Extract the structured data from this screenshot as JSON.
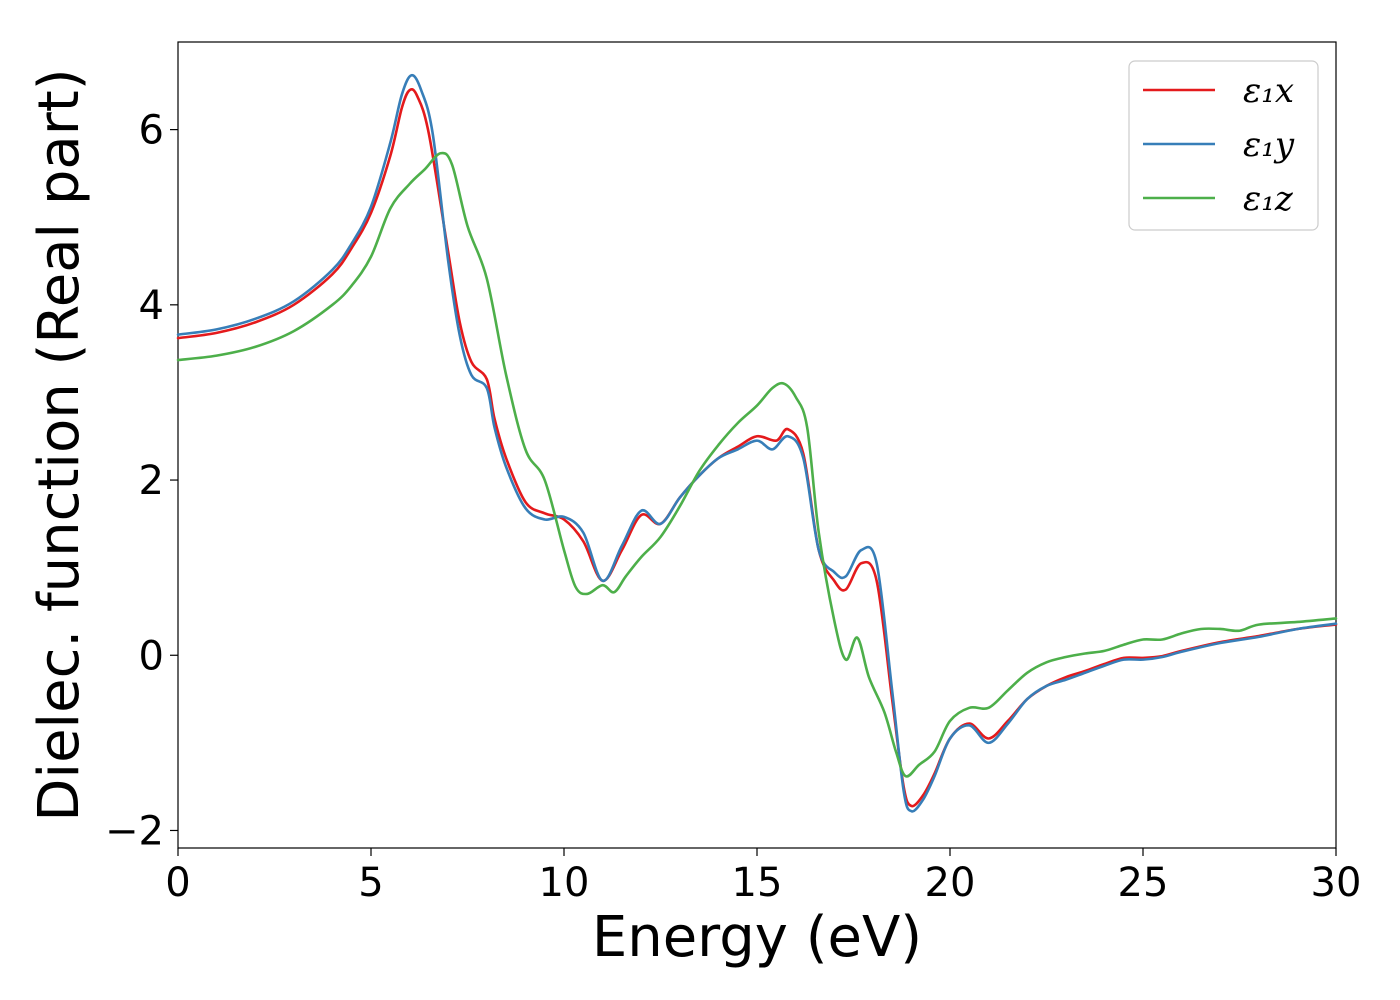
{
  "chart_data": {
    "type": "line",
    "title": "",
    "xlabel": "Energy (eV)",
    "ylabel": "Dielec. function (Real part)",
    "xlim": [
      0,
      30
    ],
    "ylim": [
      -2.2,
      7.0
    ],
    "xticks": [
      0,
      5,
      10,
      15,
      20,
      25,
      30
    ],
    "yticks": [
      -2,
      0,
      2,
      4,
      6
    ],
    "xtick_labels": [
      "0",
      "5",
      "10",
      "15",
      "20",
      "25",
      "30"
    ],
    "ytick_labels": [
      "−2",
      "0",
      "2",
      "4",
      "6"
    ],
    "grid": false,
    "legend_position": "top-right",
    "series": [
      {
        "name": "ε₁x",
        "color": "#e41a1c",
        "points": [
          [
            0,
            3.62
          ],
          [
            1,
            3.68
          ],
          [
            2,
            3.8
          ],
          [
            3,
            4.0
          ],
          [
            4,
            4.35
          ],
          [
            4.5,
            4.65
          ],
          [
            5,
            5.05
          ],
          [
            5.5,
            5.7
          ],
          [
            5.8,
            6.25
          ],
          [
            6.0,
            6.45
          ],
          [
            6.2,
            6.38
          ],
          [
            6.5,
            5.95
          ],
          [
            7.0,
            4.6
          ],
          [
            7.3,
            3.8
          ],
          [
            7.6,
            3.35
          ],
          [
            8.0,
            3.15
          ],
          [
            8.2,
            2.7
          ],
          [
            8.5,
            2.25
          ],
          [
            9.0,
            1.75
          ],
          [
            9.5,
            1.62
          ],
          [
            10.0,
            1.55
          ],
          [
            10.5,
            1.3
          ],
          [
            11.0,
            0.85
          ],
          [
            11.5,
            1.2
          ],
          [
            12.0,
            1.6
          ],
          [
            12.5,
            1.5
          ],
          [
            13.0,
            1.8
          ],
          [
            13.5,
            2.05
          ],
          [
            14.0,
            2.25
          ],
          [
            14.5,
            2.38
          ],
          [
            15.0,
            2.5
          ],
          [
            15.5,
            2.45
          ],
          [
            15.8,
            2.58
          ],
          [
            16.2,
            2.3
          ],
          [
            16.6,
            1.2
          ],
          [
            17.0,
            0.85
          ],
          [
            17.3,
            0.75
          ],
          [
            17.7,
            1.05
          ],
          [
            18.1,
            0.85
          ],
          [
            18.5,
            -0.5
          ],
          [
            18.8,
            -1.5
          ],
          [
            19.0,
            -1.72
          ],
          [
            19.3,
            -1.6
          ],
          [
            19.6,
            -1.35
          ],
          [
            20.0,
            -0.95
          ],
          [
            20.5,
            -0.78
          ],
          [
            21.0,
            -0.95
          ],
          [
            21.5,
            -0.75
          ],
          [
            22.0,
            -0.5
          ],
          [
            22.5,
            -0.35
          ],
          [
            23.0,
            -0.25
          ],
          [
            23.5,
            -0.18
          ],
          [
            24.0,
            -0.1
          ],
          [
            24.5,
            -0.03
          ],
          [
            25.0,
            -0.03
          ],
          [
            25.5,
            -0.01
          ],
          [
            26.0,
            0.05
          ],
          [
            27.0,
            0.15
          ],
          [
            28.0,
            0.22
          ],
          [
            29.0,
            0.3
          ],
          [
            30.0,
            0.35
          ]
        ]
      },
      {
        "name": "ε₁y",
        "color": "#377eb8",
        "points": [
          [
            0,
            3.66
          ],
          [
            1,
            3.72
          ],
          [
            2,
            3.84
          ],
          [
            3,
            4.04
          ],
          [
            4,
            4.4
          ],
          [
            4.5,
            4.7
          ],
          [
            5,
            5.12
          ],
          [
            5.5,
            5.85
          ],
          [
            5.8,
            6.4
          ],
          [
            6.05,
            6.62
          ],
          [
            6.3,
            6.45
          ],
          [
            6.6,
            5.95
          ],
          [
            7.0,
            4.5
          ],
          [
            7.3,
            3.65
          ],
          [
            7.6,
            3.2
          ],
          [
            8.0,
            3.05
          ],
          [
            8.2,
            2.6
          ],
          [
            8.5,
            2.15
          ],
          [
            9.0,
            1.68
          ],
          [
            9.5,
            1.55
          ],
          [
            10.0,
            1.58
          ],
          [
            10.5,
            1.4
          ],
          [
            11.0,
            0.85
          ],
          [
            11.5,
            1.25
          ],
          [
            12.0,
            1.65
          ],
          [
            12.5,
            1.5
          ],
          [
            13.0,
            1.8
          ],
          [
            13.5,
            2.05
          ],
          [
            14.0,
            2.25
          ],
          [
            14.5,
            2.35
          ],
          [
            15.0,
            2.45
          ],
          [
            15.4,
            2.35
          ],
          [
            15.8,
            2.5
          ],
          [
            16.2,
            2.25
          ],
          [
            16.6,
            1.2
          ],
          [
            17.0,
            0.95
          ],
          [
            17.3,
            0.9
          ],
          [
            17.7,
            1.2
          ],
          [
            18.1,
            1.05
          ],
          [
            18.5,
            -0.4
          ],
          [
            18.8,
            -1.55
          ],
          [
            19.0,
            -1.78
          ],
          [
            19.3,
            -1.65
          ],
          [
            19.6,
            -1.38
          ],
          [
            20.0,
            -0.95
          ],
          [
            20.5,
            -0.8
          ],
          [
            21.0,
            -1.0
          ],
          [
            21.5,
            -0.78
          ],
          [
            22.0,
            -0.5
          ],
          [
            22.5,
            -0.35
          ],
          [
            23.0,
            -0.28
          ],
          [
            23.5,
            -0.2
          ],
          [
            24.0,
            -0.12
          ],
          [
            24.5,
            -0.05
          ],
          [
            25.0,
            -0.05
          ],
          [
            25.5,
            -0.02
          ],
          [
            26.0,
            0.04
          ],
          [
            27.0,
            0.14
          ],
          [
            28.0,
            0.21
          ],
          [
            29.0,
            0.3
          ],
          [
            30.0,
            0.36
          ]
        ]
      },
      {
        "name": "ε₁z",
        "color": "#4daf4a",
        "points": [
          [
            0,
            3.37
          ],
          [
            1,
            3.42
          ],
          [
            2,
            3.52
          ],
          [
            3,
            3.7
          ],
          [
            4,
            4.0
          ],
          [
            4.5,
            4.22
          ],
          [
            5,
            4.55
          ],
          [
            5.5,
            5.1
          ],
          [
            6.0,
            5.38
          ],
          [
            6.4,
            5.55
          ],
          [
            6.8,
            5.73
          ],
          [
            7.1,
            5.6
          ],
          [
            7.5,
            4.9
          ],
          [
            8.0,
            4.3
          ],
          [
            8.5,
            3.2
          ],
          [
            9.0,
            2.35
          ],
          [
            9.5,
            2.0
          ],
          [
            10.0,
            1.2
          ],
          [
            10.3,
            0.78
          ],
          [
            10.6,
            0.7
          ],
          [
            11.0,
            0.8
          ],
          [
            11.3,
            0.72
          ],
          [
            11.6,
            0.9
          ],
          [
            12.0,
            1.12
          ],
          [
            12.5,
            1.35
          ],
          [
            13.0,
            1.7
          ],
          [
            13.5,
            2.1
          ],
          [
            14.0,
            2.4
          ],
          [
            14.5,
            2.65
          ],
          [
            15.0,
            2.85
          ],
          [
            15.4,
            3.05
          ],
          [
            15.7,
            3.1
          ],
          [
            16.0,
            2.95
          ],
          [
            16.3,
            2.6
          ],
          [
            16.6,
            1.4
          ],
          [
            17.0,
            0.4
          ],
          [
            17.3,
            -0.05
          ],
          [
            17.6,
            0.2
          ],
          [
            17.9,
            -0.25
          ],
          [
            18.3,
            -0.65
          ],
          [
            18.6,
            -1.1
          ],
          [
            18.85,
            -1.38
          ],
          [
            19.2,
            -1.25
          ],
          [
            19.6,
            -1.1
          ],
          [
            20.0,
            -0.75
          ],
          [
            20.5,
            -0.6
          ],
          [
            21.0,
            -0.6
          ],
          [
            21.5,
            -0.4
          ],
          [
            22.0,
            -0.2
          ],
          [
            22.5,
            -0.08
          ],
          [
            23.0,
            -0.02
          ],
          [
            23.5,
            0.02
          ],
          [
            24.0,
            0.05
          ],
          [
            24.5,
            0.12
          ],
          [
            25.0,
            0.18
          ],
          [
            25.5,
            0.18
          ],
          [
            26.0,
            0.25
          ],
          [
            26.5,
            0.3
          ],
          [
            27.0,
            0.3
          ],
          [
            27.5,
            0.28
          ],
          [
            28.0,
            0.35
          ],
          [
            29.0,
            0.38
          ],
          [
            30.0,
            0.42
          ]
        ]
      }
    ]
  }
}
